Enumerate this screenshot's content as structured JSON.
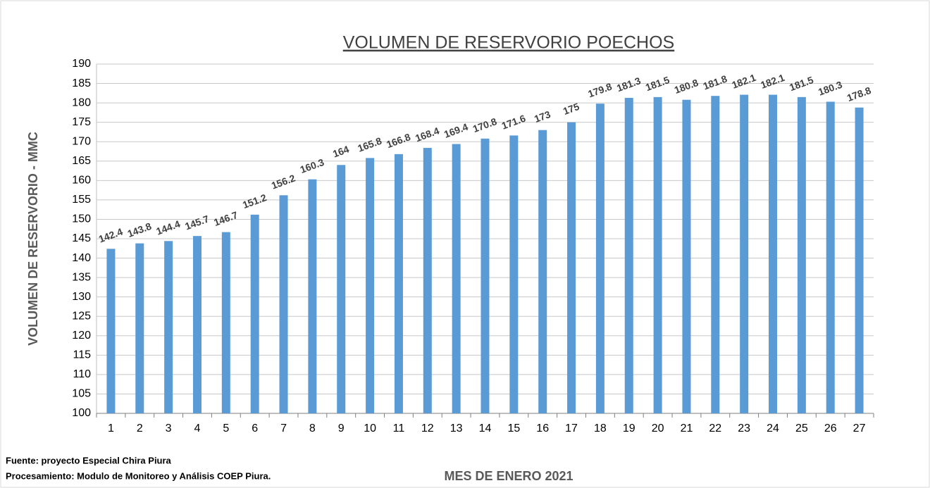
{
  "chart_data": {
    "type": "bar",
    "title": "VOLUMEN DE RESERVORIO POECHOS",
    "y_label": "VOLUMEN DE RESERVORIO - MMC",
    "x_label": "MES DE ENERO 2021",
    "notes": [
      "Fuente: proyecto Especial Chira Piura",
      "Procesamiento: Modulo de Monitoreo y Análisis COEP Piura."
    ],
    "categories": [
      "1",
      "2",
      "3",
      "4",
      "5",
      "6",
      "7",
      "8",
      "9",
      "10",
      "11",
      "12",
      "13",
      "14",
      "15",
      "16",
      "17",
      "18",
      "19",
      "20",
      "21",
      "22",
      "23",
      "24",
      "25",
      "26",
      "27"
    ],
    "values": [
      142.4,
      143.8,
      144.4,
      145.7,
      146.7,
      151.2,
      156.2,
      160.3,
      164,
      165.8,
      166.8,
      168.4,
      169.4,
      170.8,
      171.6,
      173,
      175,
      179.8,
      181.3,
      181.5,
      180.8,
      181.8,
      182.1,
      182.1,
      181.5,
      180.3,
      178.8
    ],
    "color": "#5b9bd5",
    "ylim": [
      100,
      190
    ],
    "yticks": [
      100,
      105,
      110,
      115,
      120,
      125,
      130,
      135,
      140,
      145,
      150,
      155,
      160,
      165,
      170,
      175,
      180,
      185,
      190
    ],
    "grid": true
  }
}
